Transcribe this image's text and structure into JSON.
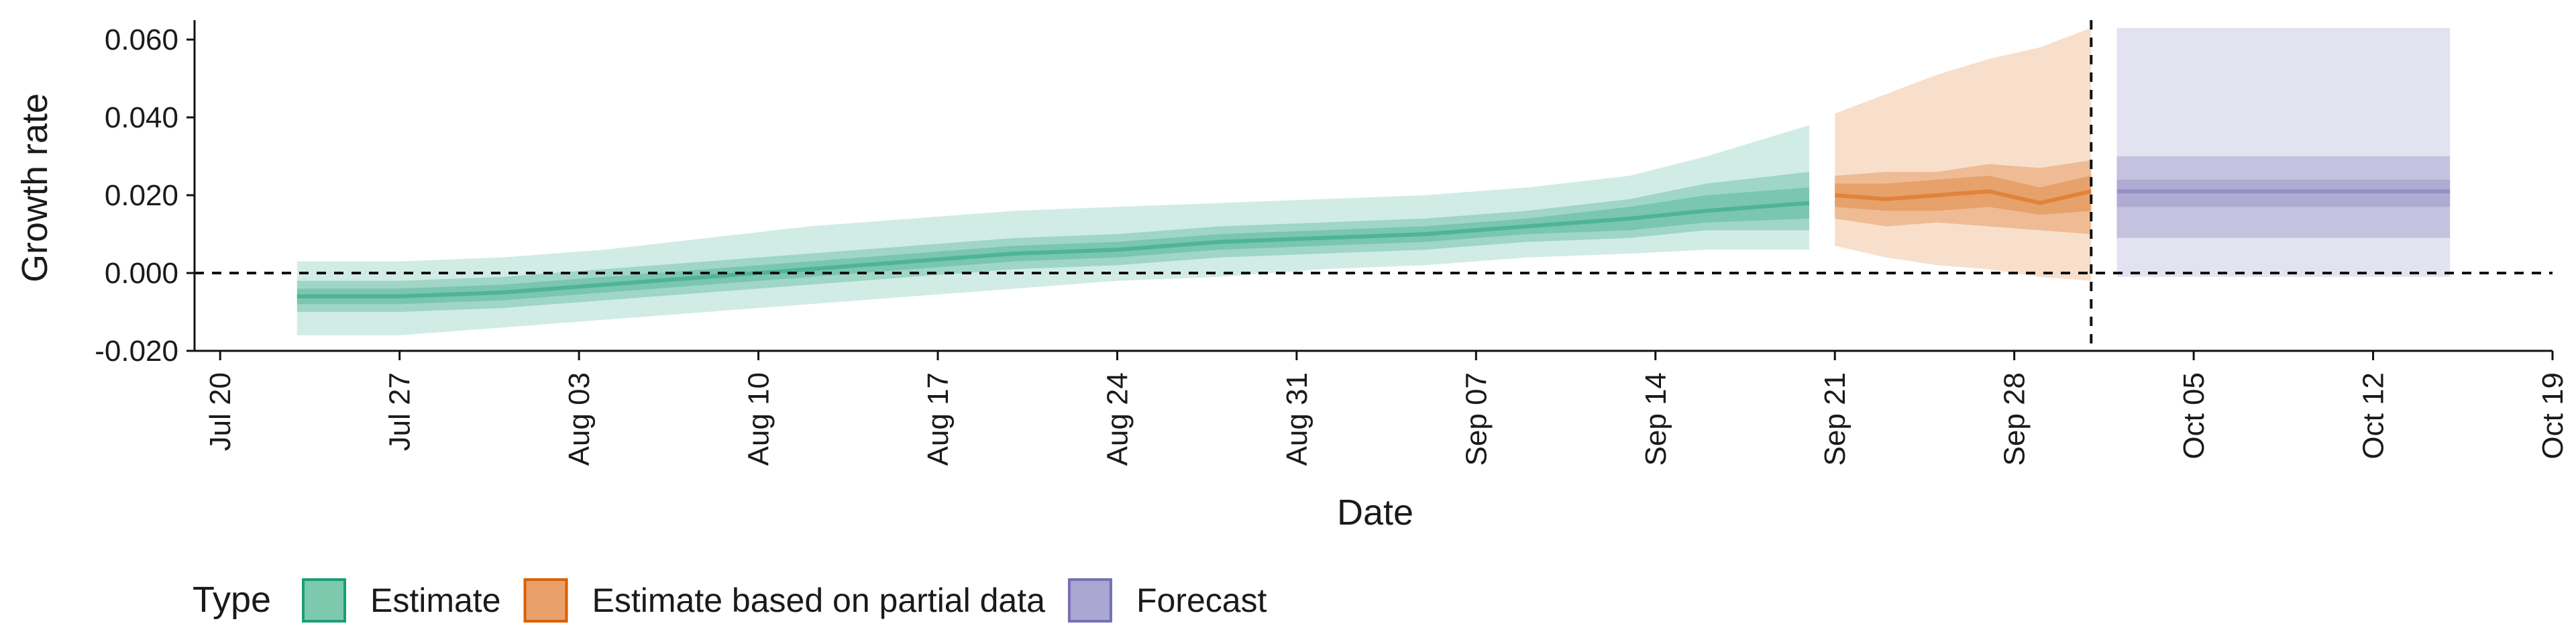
{
  "chart_data": {
    "type": "area",
    "xlabel": "Date",
    "ylabel": "Growth rate",
    "ylim": [
      -0.02,
      0.065
    ],
    "xlim": [
      "2020-07-19",
      "2020-10-19"
    ],
    "y_ticks": [
      {
        "value": -0.02,
        "label": "-0.020"
      },
      {
        "value": 0.0,
        "label": "0.000"
      },
      {
        "value": 0.02,
        "label": "0.020"
      },
      {
        "value": 0.04,
        "label": "0.040"
      },
      {
        "value": 0.06,
        "label": "0.060"
      }
    ],
    "x_ticks": [
      {
        "date": "2020-07-20",
        "label": "Jul 20"
      },
      {
        "date": "2020-07-27",
        "label": "Jul 27"
      },
      {
        "date": "2020-08-03",
        "label": "Aug 03"
      },
      {
        "date": "2020-08-10",
        "label": "Aug 10"
      },
      {
        "date": "2020-08-17",
        "label": "Aug 17"
      },
      {
        "date": "2020-08-24",
        "label": "Aug 24"
      },
      {
        "date": "2020-08-31",
        "label": "Aug 31"
      },
      {
        "date": "2020-09-07",
        "label": "Sep 07"
      },
      {
        "date": "2020-09-14",
        "label": "Sep 14"
      },
      {
        "date": "2020-09-21",
        "label": "Sep 21"
      },
      {
        "date": "2020-09-28",
        "label": "Sep 28"
      },
      {
        "date": "2020-10-05",
        "label": "Oct 05"
      },
      {
        "date": "2020-10-12",
        "label": "Oct 12"
      },
      {
        "date": "2020-10-19",
        "label": "Oct 19"
      }
    ],
    "reference_lines": {
      "hline_y": 0,
      "vline_date": "2020-10-01",
      "style": "dashed"
    },
    "legend": {
      "title": "Type",
      "position": "bottom",
      "entries": [
        {
          "label": "Estimate",
          "fill": "#7dc9ae",
          "stroke": "#1b9e77"
        },
        {
          "label": "Estimate based on partial data",
          "fill": "#eaa06a",
          "stroke": "#d95f02"
        },
        {
          "label": "Forecast",
          "fill": "#aba7d3",
          "stroke": "#7570b3"
        }
      ]
    },
    "series": [
      {
        "name": "Estimate",
        "color": "#1b9e77",
        "x": [
          "2020-07-23",
          "2020-07-27",
          "2020-07-31",
          "2020-08-04",
          "2020-08-08",
          "2020-08-12",
          "2020-08-16",
          "2020-08-20",
          "2020-08-24",
          "2020-08-28",
          "2020-09-01",
          "2020-09-05",
          "2020-09-09",
          "2020-09-13",
          "2020-09-16",
          "2020-09-20"
        ],
        "median": [
          -0.006,
          -0.006,
          -0.005,
          -0.003,
          -0.001,
          0.001,
          0.003,
          0.005,
          0.006,
          0.008,
          0.009,
          0.01,
          0.012,
          0.014,
          0.016,
          0.018
        ],
        "lower_50": [
          -0.008,
          -0.008,
          -0.007,
          -0.005,
          -0.003,
          -0.001,
          0.001,
          0.003,
          0.004,
          0.006,
          0.007,
          0.008,
          0.01,
          0.011,
          0.013,
          0.014
        ],
        "upper_50": [
          -0.004,
          -0.004,
          -0.003,
          -0.001,
          0.001,
          0.003,
          0.005,
          0.007,
          0.008,
          0.01,
          0.011,
          0.012,
          0.014,
          0.017,
          0.02,
          0.022
        ],
        "lower_90": [
          -0.01,
          -0.01,
          -0.009,
          -0.007,
          -0.005,
          -0.003,
          -0.001,
          0.001,
          0.002,
          0.004,
          0.005,
          0.006,
          0.008,
          0.009,
          0.011,
          0.011
        ],
        "upper_90": [
          -0.002,
          -0.002,
          -0.001,
          0.001,
          0.003,
          0.005,
          0.007,
          0.009,
          0.01,
          0.012,
          0.013,
          0.014,
          0.016,
          0.019,
          0.023,
          0.026
        ],
        "lower_ci": [
          -0.016,
          -0.016,
          -0.014,
          -0.012,
          -0.01,
          -0.008,
          -0.006,
          -0.004,
          -0.002,
          -0.001,
          0.001,
          0.002,
          0.004,
          0.005,
          0.006,
          0.006
        ],
        "upper_ci": [
          0.003,
          0.003,
          0.004,
          0.006,
          0.009,
          0.012,
          0.014,
          0.016,
          0.017,
          0.018,
          0.019,
          0.02,
          0.022,
          0.025,
          0.03,
          0.038
        ]
      },
      {
        "name": "Estimate based on partial data",
        "color": "#d95f02",
        "x": [
          "2020-09-21",
          "2020-09-23",
          "2020-09-25",
          "2020-09-27",
          "2020-09-29",
          "2020-10-01"
        ],
        "median": [
          0.02,
          0.019,
          0.02,
          0.021,
          0.018,
          0.021
        ],
        "lower_50": [
          0.014,
          0.012,
          0.013,
          0.012,
          0.011,
          0.01
        ],
        "upper_50": [
          0.025,
          0.026,
          0.026,
          0.028,
          0.027,
          0.029
        ],
        "lower_90": [
          0.017,
          0.016,
          0.016,
          0.017,
          0.015,
          0.016
        ],
        "upper_90": [
          0.023,
          0.023,
          0.024,
          0.025,
          0.022,
          0.025
        ],
        "lower_ci": [
          0.007,
          0.004,
          0.002,
          0.001,
          -0.001,
          -0.002
        ],
        "upper_ci": [
          0.041,
          0.046,
          0.051,
          0.055,
          0.058,
          0.063
        ]
      },
      {
        "name": "Forecast",
        "color": "#7570b3",
        "x": [
          "2020-10-02",
          "2020-10-15"
        ],
        "median": [
          0.021,
          0.021
        ],
        "lower_50": [
          0.009,
          0.009
        ],
        "upper_50": [
          0.03,
          0.03
        ],
        "lower_90": [
          0.017,
          0.017
        ],
        "upper_90": [
          0.024,
          0.024
        ],
        "lower_ci": [
          -0.001,
          -0.001
        ],
        "upper_ci": [
          0.063,
          0.063
        ]
      }
    ]
  }
}
